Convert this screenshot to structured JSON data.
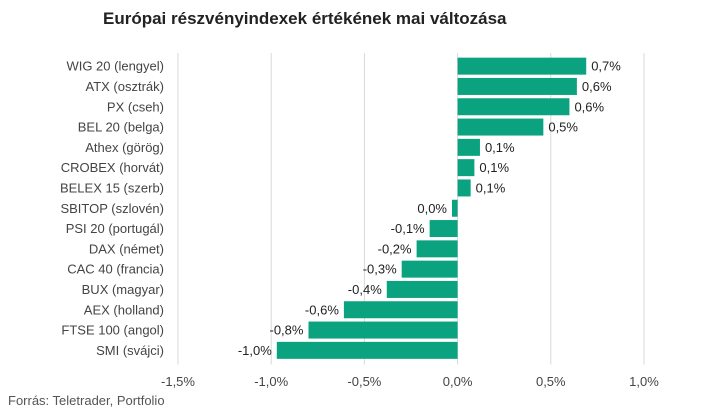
{
  "chart_data": {
    "type": "bar",
    "orientation": "horizontal",
    "title": "Európai részvényindexek értékének mai változása",
    "categories": [
      "WIG 20 (lengyel)",
      "ATX (osztrák)",
      "PX (cseh)",
      "BEL 20 (belga)",
      "Athex (görög)",
      "CROBEX (horvát)",
      "BELEX 15 (szerb)",
      "SBITOP (szlovén)",
      "PSI 20 (portugál)",
      "DAX (német)",
      "CAC 40 (francia)",
      "BUX (magyar)",
      "AEX (holland)",
      "FTSE 100 (angol)",
      "SMI (svájci)"
    ],
    "values": [
      0.69,
      0.64,
      0.6,
      0.46,
      0.12,
      0.09,
      0.07,
      -0.03,
      -0.15,
      -0.22,
      -0.3,
      -0.38,
      -0.61,
      -0.8,
      -0.97
    ],
    "data_labels": [
      "0,7%",
      "0,6%",
      "0,6%",
      "0,5%",
      "0,1%",
      "0,1%",
      "0,1%",
      "0,0%",
      "-0,1%",
      "-0,2%",
      "-0,3%",
      "-0,4%",
      "-0,6%",
      "-0,8%",
      "-1,0%"
    ],
    "xlim": [
      -1.5,
      1.0
    ],
    "xticks": [
      -1.5,
      -1.0,
      -0.5,
      0.0,
      0.5,
      1.0
    ],
    "xtick_labels": [
      "-1,5%",
      "-1,0%",
      "-0,5%",
      "0,0%",
      "0,5%",
      "1,0%"
    ],
    "grid": true,
    "bar_color": "#0ba37f",
    "grid_color": "#d9d9d9"
  },
  "source": "Forrás: Teletrader, Portfolio"
}
